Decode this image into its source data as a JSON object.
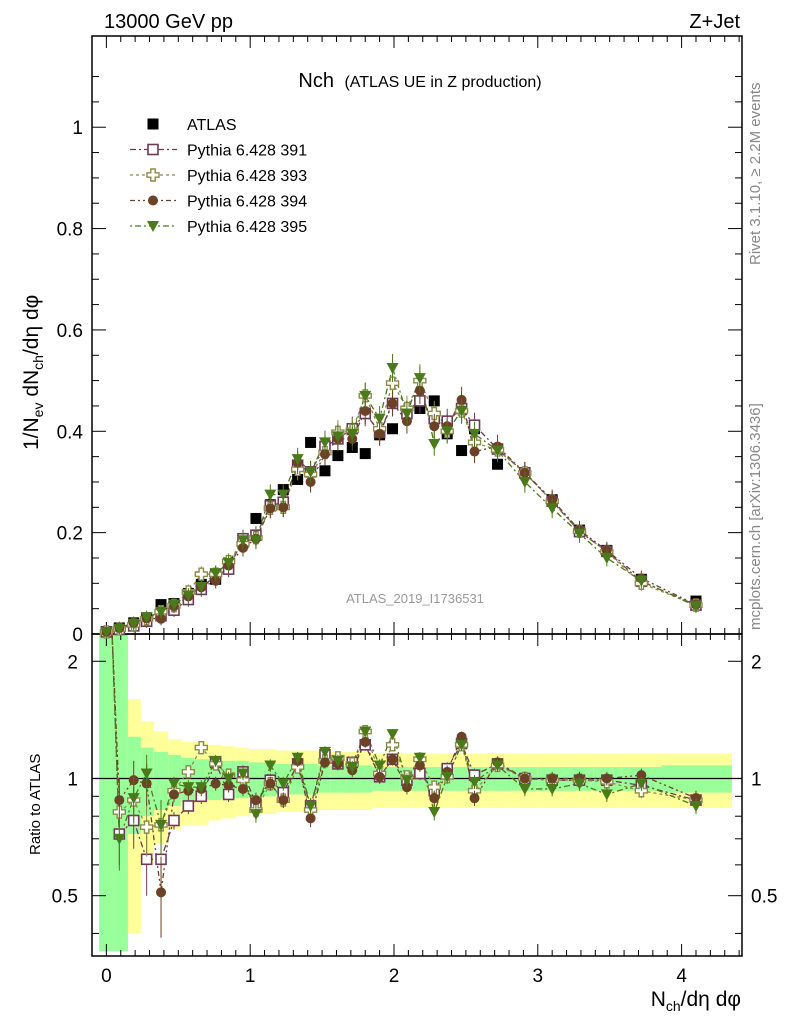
{
  "header": {
    "left": "13000 GeV pp",
    "right": "Z+Jet"
  },
  "side_labels": {
    "rivet": "Rivet 3.1.10, ≥ 2.2M events",
    "mcplots": "mcplots.cern.ch [arXiv:1306.3436]"
  },
  "colors": {
    "atlas": "#000000",
    "p391": "#6e3a5c",
    "p393": "#8c8c4a",
    "p394": "#6b4226",
    "p395": "#4a7a1a",
    "band_inner": "#99ff99",
    "band_outer": "#ffff99"
  },
  "chart_data": [
    {
      "type": "scatter",
      "panel": "main",
      "title": "Nch",
      "subtitle": "(ATLAS UE in Z production)",
      "watermark": "ATLAS_2019_I1736531",
      "ylabel": "1/N_ev dN_ch/dη dφ",
      "xlabel": "N_ch/dη dφ",
      "xlim": [
        -0.1,
        4.42
      ],
      "ylim": [
        0,
        1.18
      ],
      "x_ticks": [
        "0",
        "1",
        "2",
        "3",
        "4"
      ],
      "y_ticks": [
        "0",
        "0.2",
        "0.4",
        "0.6",
        "0.8",
        "1"
      ],
      "legend_position": "top-left",
      "x": [
        0.0,
        0.09,
        0.19,
        0.28,
        0.38,
        0.47,
        0.57,
        0.66,
        0.76,
        0.85,
        0.95,
        1.04,
        1.14,
        1.23,
        1.33,
        1.42,
        1.52,
        1.61,
        1.71,
        1.8,
        1.9,
        1.99,
        2.09,
        2.18,
        2.28,
        2.37,
        2.47,
        2.56,
        2.72,
        2.91,
        3.1,
        3.29,
        3.48,
        3.72,
        4.1
      ],
      "series": [
        {
          "name": "ATLAS",
          "marker": "square-filled",
          "values": [
            0.005,
            0.012,
            0.022,
            0.032,
            0.058,
            0.06,
            0.08,
            0.098,
            0.108,
            0.14,
            0.18,
            0.228,
            0.255,
            0.285,
            0.305,
            0.378,
            0.322,
            0.352,
            0.368,
            0.356,
            0.393,
            0.405,
            0.44,
            0.445,
            0.46,
            0.395,
            0.362,
            0.405,
            0.335,
            0.318,
            0.265,
            0.205,
            0.165,
            0.108,
            0.065
          ]
        },
        {
          "name": "Pythia 6.428 391",
          "marker": "square-open",
          "values": [
            0.004,
            0.009,
            0.016,
            0.025,
            0.036,
            0.047,
            0.068,
            0.088,
            0.118,
            0.128,
            0.188,
            0.195,
            0.253,
            0.26,
            0.333,
            0.32,
            0.37,
            0.385,
            0.405,
            0.435,
            0.398,
            0.455,
            0.435,
            0.46,
            0.425,
            0.42,
            0.445,
            0.412,
            0.365,
            0.318,
            0.262,
            0.202,
            0.163,
            0.104,
            0.057
          ]
        },
        {
          "name": "Pythia 6.428 393",
          "marker": "cross-open",
          "values": [
            0.004,
            0.01,
            0.018,
            0.03,
            0.044,
            0.056,
            0.083,
            0.118,
            0.118,
            0.143,
            0.178,
            0.19,
            0.248,
            0.25,
            0.325,
            0.315,
            0.358,
            0.398,
            0.402,
            0.47,
            0.405,
            0.495,
            0.445,
            0.5,
            0.435,
            0.4,
            0.44,
            0.378,
            0.363,
            0.318,
            0.262,
            0.203,
            0.162,
            0.1,
            0.057
          ]
        },
        {
          "name": "Pythia 6.428 394",
          "marker": "circle-filled",
          "values": [
            0.004,
            0.012,
            0.022,
            0.031,
            0.03,
            0.055,
            0.074,
            0.092,
            0.105,
            0.135,
            0.17,
            0.188,
            0.248,
            0.25,
            0.338,
            0.3,
            0.355,
            0.385,
            0.385,
            0.44,
            0.395,
            0.455,
            0.42,
            0.48,
            0.41,
            0.41,
            0.462,
            0.36,
            0.37,
            0.318,
            0.265,
            0.205,
            0.165,
            0.11,
            0.058
          ]
        },
        {
          "name": "Pythia 6.428 395",
          "marker": "triangle-down-filled",
          "values": [
            0.004,
            0.01,
            0.02,
            0.033,
            0.044,
            0.058,
            0.076,
            0.093,
            0.12,
            0.14,
            0.185,
            0.185,
            0.275,
            0.275,
            0.345,
            0.32,
            0.378,
            0.39,
            0.395,
            0.47,
            0.425,
            0.525,
            0.435,
            0.505,
            0.375,
            0.4,
            0.44,
            0.395,
            0.362,
            0.3,
            0.248,
            0.198,
            0.15,
            0.105,
            0.055
          ]
        }
      ]
    },
    {
      "type": "scatter",
      "panel": "ratio",
      "ylabel": "Ratio to ATLAS",
      "xlabel": "N_ch/dη dφ",
      "xlim": [
        -0.1,
        4.42
      ],
      "ylim": [
        0.35,
        2.35
      ],
      "y_ticks": [
        "0.5",
        "1",
        "2"
      ],
      "x_ticks": [
        "0",
        "1",
        "2",
        "3",
        "4"
      ],
      "reference_line": 1,
      "band_edges": [
        -0.05,
        0.05,
        0.15,
        0.24,
        0.33,
        0.43,
        0.52,
        0.61,
        0.71,
        0.8,
        0.9,
        0.99,
        1.09,
        1.18,
        1.28,
        1.37,
        1.47,
        1.56,
        1.66,
        1.75,
        1.85,
        1.94,
        2.04,
        2.13,
        2.23,
        2.32,
        2.42,
        2.51,
        2.62,
        2.82,
        3.0,
        3.2,
        3.39,
        3.58,
        3.86,
        4.35
      ],
      "band_inner_halfwidth": [
        2.0,
        2.0,
        0.28,
        0.2,
        0.17,
        0.15,
        0.13,
        0.12,
        0.12,
        0.11,
        0.11,
        0.1,
        0.1,
        0.09,
        0.09,
        0.09,
        0.08,
        0.08,
        0.08,
        0.08,
        0.07,
        0.07,
        0.07,
        0.07,
        0.07,
        0.07,
        0.07,
        0.07,
        0.07,
        0.07,
        0.07,
        0.07,
        0.07,
        0.07,
        0.08
      ],
      "band_outer_halfwidth": [
        2.0,
        2.0,
        0.6,
        0.4,
        0.32,
        0.26,
        0.24,
        0.24,
        0.22,
        0.21,
        0.2,
        0.19,
        0.19,
        0.18,
        0.18,
        0.18,
        0.17,
        0.17,
        0.17,
        0.17,
        0.16,
        0.16,
        0.16,
        0.16,
        0.16,
        0.16,
        0.16,
        0.16,
        0.16,
        0.16,
        0.16,
        0.16,
        0.16,
        0.16,
        0.16
      ],
      "x": [
        0.09,
        0.19,
        0.28,
        0.38,
        0.47,
        0.57,
        0.66,
        0.76,
        0.85,
        0.95,
        1.04,
        1.14,
        1.23,
        1.33,
        1.42,
        1.52,
        1.61,
        1.71,
        1.8,
        1.9,
        1.99,
        2.09,
        2.18,
        2.28,
        2.37,
        2.47,
        2.56,
        2.72,
        2.91,
        3.1,
        3.29,
        3.48,
        3.72,
        4.1
      ],
      "series": [
        {
          "name": "Pythia 6.428 391",
          "values": [
            0.72,
            0.78,
            0.62,
            0.62,
            0.78,
            0.85,
            0.9,
            1.1,
            0.91,
            1.04,
            0.86,
            0.99,
            0.92,
            1.09,
            0.85,
            1.15,
            1.09,
            1.1,
            1.22,
            1.01,
            1.12,
            0.99,
            1.03,
            0.93,
            1.06,
            1.23,
            1.02,
            1.09,
            1.0,
            0.99,
            0.99,
            0.99,
            0.96,
            0.88
          ]
        },
        {
          "name": "Pythia 6.428 393",
          "values": [
            0.82,
            0.88,
            0.75,
            0.76,
            0.93,
            1.04,
            1.2,
            1.09,
            1.02,
            0.99,
            0.83,
            0.97,
            0.88,
            1.07,
            0.83,
            1.11,
            1.13,
            1.09,
            1.32,
            1.03,
            1.22,
            1.01,
            1.12,
            0.95,
            1.01,
            1.22,
            0.93,
            1.08,
            1.0,
            0.99,
            0.99,
            0.98,
            0.93,
            0.88
          ]
        },
        {
          "name": "Pythia 6.428 394",
          "values": [
            0.88,
            0.99,
            0.97,
            0.51,
            0.91,
            0.93,
            0.94,
            0.97,
            0.96,
            0.94,
            0.88,
            0.97,
            0.88,
            1.11,
            0.79,
            1.1,
            1.09,
            1.05,
            1.24,
            1.01,
            1.12,
            0.95,
            1.08,
            0.89,
            1.04,
            1.28,
            0.89,
            1.1,
            1.0,
            1.0,
            1.0,
            1.0,
            1.02,
            0.89
          ]
        },
        {
          "name": "Pythia 6.428 395",
          "values": [
            0.7,
            0.89,
            1.03,
            0.76,
            0.97,
            0.95,
            0.95,
            1.11,
            1.0,
            1.03,
            0.81,
            1.08,
            0.97,
            1.13,
            0.85,
            1.17,
            1.11,
            1.07,
            1.32,
            1.08,
            1.3,
            0.99,
            1.13,
            0.82,
            1.01,
            1.22,
            0.98,
            1.08,
            0.94,
            0.94,
            0.97,
            0.91,
            0.97,
            0.85
          ]
        }
      ]
    }
  ]
}
